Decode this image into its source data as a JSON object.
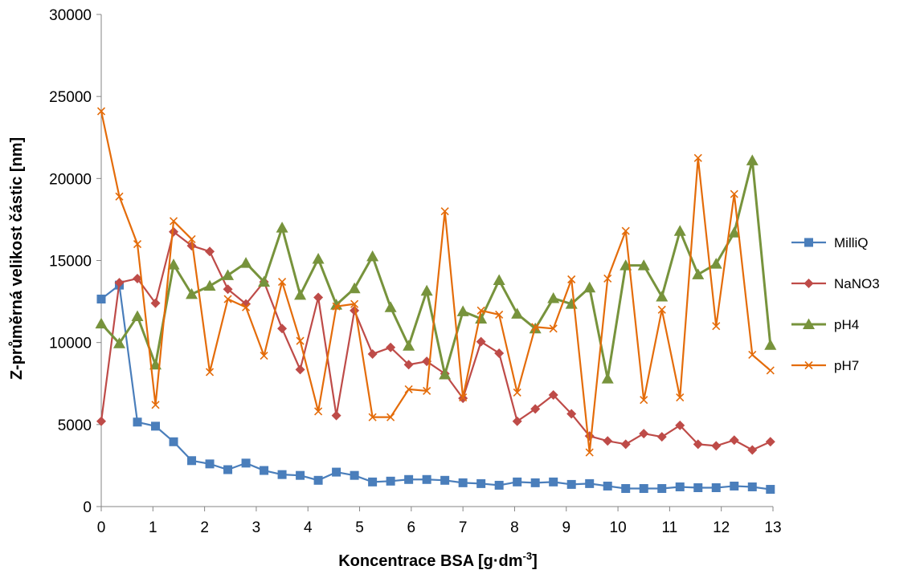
{
  "chart_data": {
    "type": "line",
    "xlabel": "Koncentrace BSA [g·dm",
    "xlabel_sup": "-3",
    "xlabel_end": "]",
    "ylabel": "Z-průměrná velikost částic [nm]",
    "xlim": [
      0,
      13
    ],
    "ylim": [
      0,
      30000
    ],
    "x_ticks": [
      "0",
      "1",
      "2",
      "3",
      "4",
      "5",
      "6",
      "7",
      "8",
      "9",
      "10",
      "11",
      "12",
      "13"
    ],
    "y_ticks": [
      "0",
      "5000",
      "10000",
      "15000",
      "20000",
      "25000",
      "30000"
    ],
    "grid": false,
    "legend_position": "right",
    "x": [
      0,
      0.35,
      0.7,
      1.05,
      1.4,
      1.75,
      2.1,
      2.45,
      2.8,
      3.15,
      3.5,
      3.85,
      4.2,
      4.55,
      4.9,
      5.25,
      5.6,
      5.95,
      6.3,
      6.65,
      7.0,
      7.35,
      7.7,
      8.05,
      8.4,
      8.75,
      9.1,
      9.45,
      9.8,
      10.15,
      10.5,
      10.85,
      11.2,
      11.55,
      11.9,
      12.25,
      12.6,
      12.95
    ],
    "series": [
      {
        "name": "MilliQ",
        "color": "#4a7ebb",
        "marker": "square",
        "values": [
          12650,
          13500,
          5150,
          4900,
          3950,
          2800,
          2600,
          2250,
          2650,
          2200,
          1950,
          1900,
          1600,
          2100,
          1900,
          1500,
          1550,
          1650,
          1650,
          1600,
          1450,
          1400,
          1300,
          1500,
          1450,
          1500,
          1350,
          1400,
          1250,
          1100,
          1100,
          1100,
          1200,
          1150,
          1150,
          1250,
          1200,
          1050
        ]
      },
      {
        "name": "NaNO3",
        "color": "#be4b48",
        "marker": "diamond",
        "values": [
          5200,
          13650,
          13900,
          12400,
          16750,
          15900,
          15550,
          13250,
          12350,
          13700,
          10850,
          8350,
          12750,
          5550,
          11950,
          9300,
          9700,
          8650,
          8850,
          8100,
          6600,
          10050,
          9350,
          5200,
          5950,
          6800,
          5650,
          4300,
          4000,
          3800,
          4450,
          4250,
          4950,
          3800,
          3700,
          4050,
          3450,
          3950
        ]
      },
      {
        "name": "pH4",
        "color": "#77933c",
        "marker": "triangle",
        "values": [
          11150,
          9950,
          11600,
          8650,
          14750,
          12950,
          13450,
          14100,
          14850,
          13700,
          17000,
          12900,
          15100,
          12300,
          13300,
          15250,
          12150,
          9800,
          13150,
          8050,
          11900,
          11450,
          13800,
          11750,
          10850,
          12700,
          12350,
          13350,
          7800,
          14700,
          14700,
          12800,
          16800,
          14150,
          14800,
          16700,
          21100,
          9850
        ]
      },
      {
        "name": "pH7",
        "color": "#e46c0a",
        "marker": "x",
        "values": [
          24100,
          18900,
          16000,
          6200,
          17400,
          16300,
          8200,
          12650,
          12150,
          9200,
          13700,
          10100,
          5800,
          12200,
          12350,
          5450,
          5450,
          7150,
          7050,
          18000,
          6650,
          11950,
          11700,
          6950,
          10950,
          10850,
          13850,
          3300,
          13900,
          16800,
          6500,
          12000,
          6650,
          21250,
          11000,
          19050,
          9250,
          8300
        ]
      }
    ]
  }
}
